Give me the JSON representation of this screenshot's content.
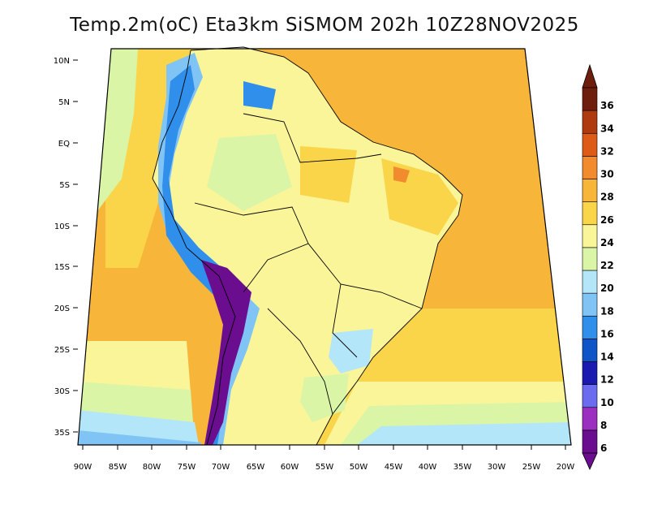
{
  "title": "Temp.2m(oC) Eta3km SiSMOM 202h 10Z28NOV2025",
  "lat_labels": [
    "10N",
    "5N",
    "EQ",
    "5S",
    "10S",
    "15S",
    "20S",
    "25S",
    "30S",
    "35S"
  ],
  "lon_labels": [
    "90W",
    "85W",
    "80W",
    "75W",
    "70W",
    "65W",
    "60W",
    "55W",
    "50W",
    "45W",
    "40W",
    "35W",
    "30W",
    "25W",
    "20W"
  ],
  "colorbar": {
    "labels": [
      "6",
      "8",
      "10",
      "12",
      "14",
      "16",
      "18",
      "20",
      "22",
      "24",
      "26",
      "28",
      "30",
      "32",
      "34",
      "36"
    ],
    "colors": [
      "#6a0d8f",
      "#9a2fc0",
      "#6b6bf0",
      "#1a1ab0",
      "#0f55c8",
      "#2f8fea",
      "#7fc4f5",
      "#b4e6fa",
      "#d9f5a5",
      "#fbf59a",
      "#fad54a",
      "#f7b53a",
      "#f28a2e",
      "#de5b17",
      "#b03a10",
      "#6e1e0d"
    ]
  },
  "colors": {
    "ocean_warm": "#f7b53a",
    "land_base": "#fbf59a",
    "cool_ocean": "#b4e6fa",
    "andes_cold": "#6a0d8f"
  }
}
